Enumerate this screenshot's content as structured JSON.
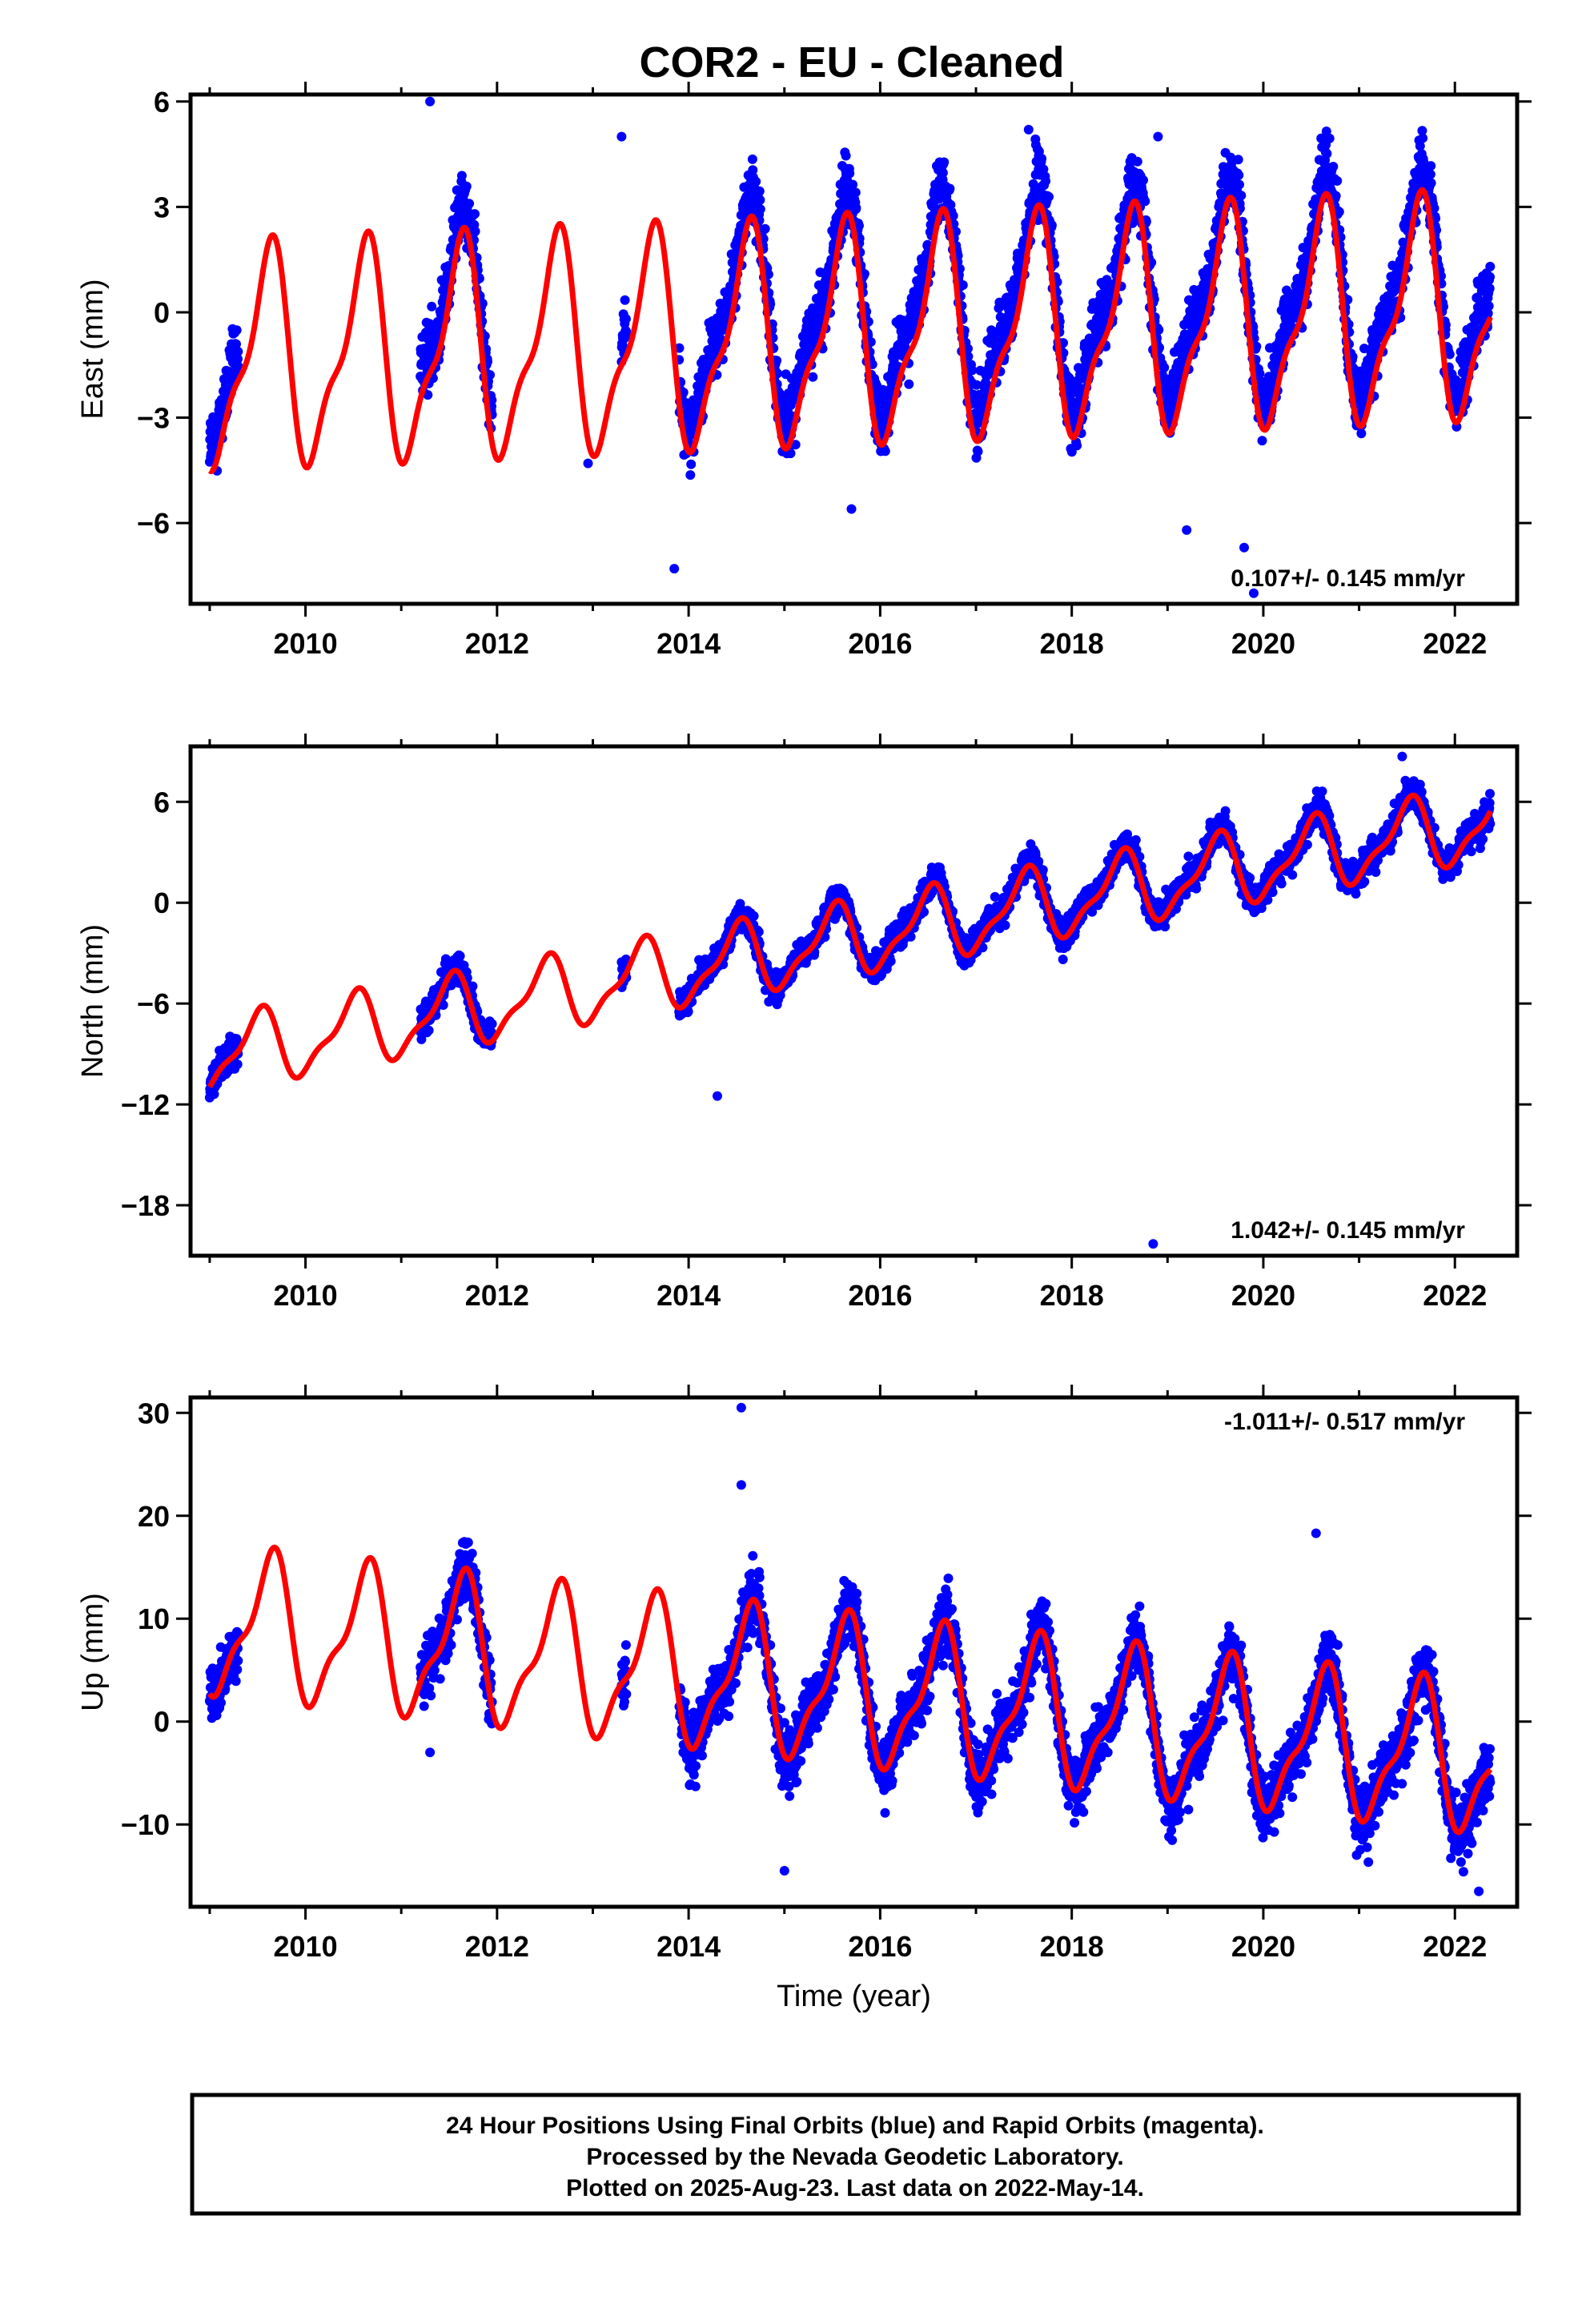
{
  "title": "COR2  - EU - Cleaned",
  "colors": {
    "final_orbits": "#0000ff",
    "model": "#ff0000",
    "frame": "#000000"
  },
  "chart_data": [
    {
      "type": "scatter",
      "component": "East",
      "ylabel": "East (mm)",
      "xlim": [
        2008.8,
        2022.65
      ],
      "ylim": [
        -8.3,
        6.2
      ],
      "yticks": [
        6,
        3,
        0,
        -3,
        -6
      ],
      "ytick_labels": [
        "6",
        "3",
        "0",
        "−3",
        "−6"
      ],
      "xticks": [
        2010,
        2012,
        2014,
        2016,
        2018,
        2020,
        2022
      ],
      "rate_text": "0.107+/- 0.145 mm/yr",
      "grid": false,
      "series": [
        {
          "kind": "points",
          "segments": [
            [
              2009.0,
              2009.3
            ],
            [
              2011.2,
              2011.95
            ],
            [
              2013.3,
              2013.35
            ],
            [
              2013.9,
              2022.37
            ]
          ],
          "amplitude": 2.8,
          "trend": 0.107,
          "ref_year": 2015.5,
          "offset": 0.0,
          "noise": 1.2,
          "phase": 0.6
        },
        {
          "kind": "model",
          "x_range": [
            2009.0,
            2022.37
          ],
          "amplitude": 2.85,
          "trend": 0.107,
          "ref_year": 2015.5,
          "offset": -0.7,
          "phase": 0.6
        }
      ],
      "outliers": [
        [
          2011.3,
          6.0
        ],
        [
          2013.3,
          5.0
        ],
        [
          2013.85,
          -7.3
        ],
        [
          2015.7,
          -5.6
        ],
        [
          2017.55,
          5.2
        ],
        [
          2019.2,
          -6.2
        ],
        [
          2019.8,
          -6.7
        ],
        [
          2019.9,
          -8.0
        ],
        [
          2018.9,
          5.0
        ],
        [
          2012.95,
          -4.3
        ]
      ]
    },
    {
      "type": "scatter",
      "component": "North",
      "ylabel": "North (mm)",
      "xlim": [
        2008.8,
        2022.65
      ],
      "ylim": [
        -21,
        9.3
      ],
      "yticks": [
        6,
        0,
        -6,
        -12,
        -18
      ],
      "ytick_labels": [
        "6",
        "0",
        "−6",
        "−12",
        "−18"
      ],
      "xticks": [
        2010,
        2012,
        2014,
        2016,
        2018,
        2020,
        2022
      ],
      "rate_text": "1.042+/- 0.145 mm/yr",
      "grid": false,
      "series": [
        {
          "kind": "points",
          "segments": [
            [
              2009.0,
              2009.3
            ],
            [
              2011.2,
              2011.95
            ],
            [
              2013.3,
              2013.35
            ],
            [
              2013.9,
              2022.37
            ]
          ],
          "amplitude": 2.0,
          "trend": 1.042,
          "ref_year": 2015.5,
          "offset": -2.2,
          "noise": 1.1,
          "phase": 0.5
        },
        {
          "kind": "model",
          "x_range": [
            2009.0,
            2022.37
          ],
          "amplitude": 2.0,
          "trend": 1.042,
          "ref_year": 2015.5,
          "offset": -2.4,
          "phase": 0.5
        }
      ],
      "outliers": [
        [
          2014.3,
          -11.5
        ],
        [
          2018.85,
          -20.3
        ],
        [
          2021.45,
          8.7
        ]
      ]
    },
    {
      "type": "scatter",
      "component": "Up",
      "ylabel": "Up (mm)",
      "xlabel": "Time (year)",
      "xlim": [
        2008.8,
        2022.65
      ],
      "ylim": [
        -18,
        31.5
      ],
      "yticks": [
        30,
        20,
        10,
        0,
        -10
      ],
      "ytick_labels": [
        "30",
        "20",
        "10",
        "0",
        "−10"
      ],
      "xticks": [
        2010,
        2012,
        2014,
        2016,
        2018,
        2020,
        2022
      ],
      "rate_text": "-1.011+/- 0.517 mm/yr",
      "grid": false,
      "series": [
        {
          "kind": "points",
          "segments": [
            [
              2009.0,
              2009.3
            ],
            [
              2011.2,
              2011.95
            ],
            [
              2013.3,
              2013.35
            ],
            [
              2013.9,
              2022.37
            ]
          ],
          "amplitude": 6.5,
          "trend": -1.011,
          "ref_year": 2015.5,
          "offset": 3.0,
          "noise": 3.8,
          "phase": 0.62
        },
        {
          "kind": "model",
          "x_range": [
            2009.0,
            2022.37
          ],
          "amplitude": 6.5,
          "trend": -1.011,
          "ref_year": 2015.5,
          "offset": 3.0,
          "phase": 0.62
        }
      ],
      "outliers": [
        [
          2014.55,
          30.5
        ],
        [
          2014.55,
          23.0
        ],
        [
          2020.55,
          18.3
        ],
        [
          2015.0,
          -14.5
        ],
        [
          2022.25,
          -16.5
        ],
        [
          2011.3,
          -3.0
        ],
        [
          2013.3,
          3.5
        ]
      ]
    }
  ],
  "footer": {
    "line1": "24 Hour Positions Using Final Orbits (blue) and Rapid Orbits (magenta).",
    "line2": "Processed by the Nevada Geodetic Laboratory.",
    "line3": "Plotted on 2025-Aug-23. Last data on 2022-May-14."
  }
}
